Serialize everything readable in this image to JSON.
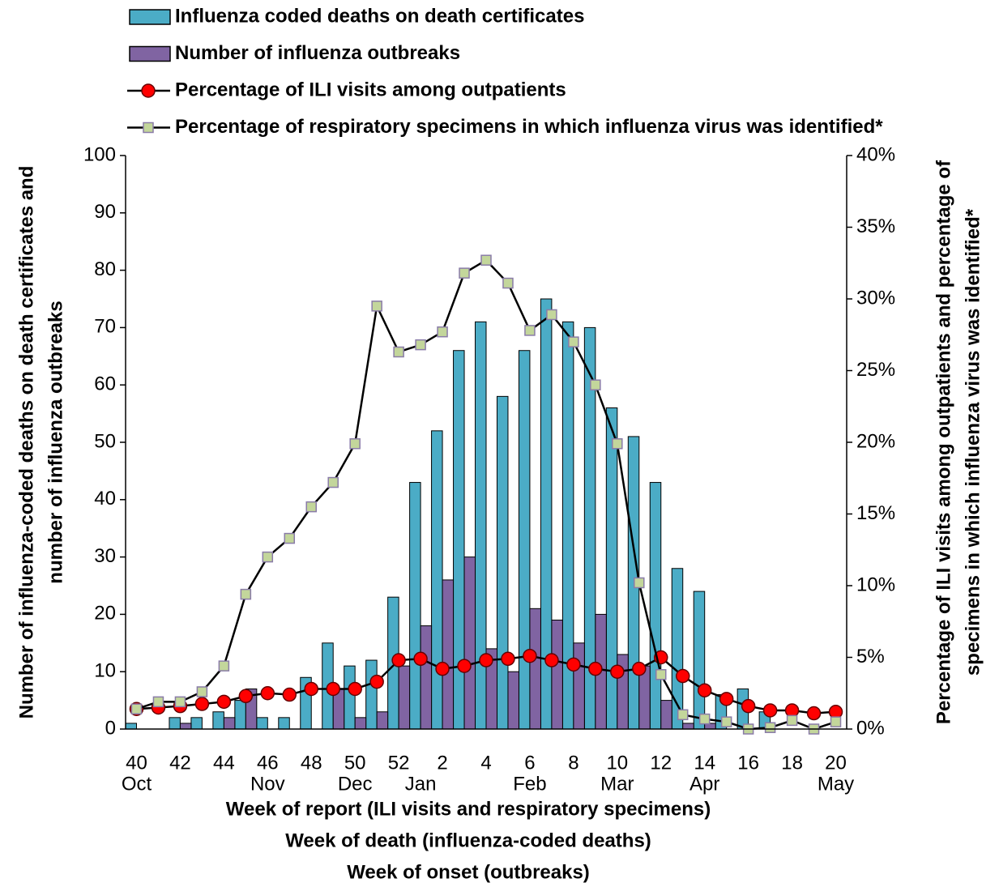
{
  "chart_data": {
    "type": "combo",
    "categories": [
      "40",
      null,
      "42",
      null,
      "44",
      null,
      "46",
      null,
      "48",
      null,
      "50",
      null,
      "52",
      null,
      "2",
      null,
      "4",
      null,
      "6",
      null,
      "8",
      null,
      "10",
      null,
      "12",
      null,
      "14",
      null,
      "16",
      null,
      "18",
      null,
      "20"
    ],
    "month_labels": [
      "Oct",
      null,
      null,
      null,
      null,
      null,
      "Nov",
      null,
      null,
      null,
      "Dec",
      null,
      null,
      "Jan",
      null,
      null,
      null,
      null,
      "Feb",
      null,
      null,
      null,
      "Mar",
      null,
      null,
      null,
      "Apr",
      null,
      null,
      null,
      null,
      null,
      "May"
    ],
    "x_label_lines": [
      "Week of report (ILI visits and respiratory specimens)",
      "Week of death (influenza-coded deaths)",
      "Week of onset (outbreaks)"
    ],
    "y_label_lines": [
      "Number of influenza-coded deaths on death certificates and",
      "number of influenza outbreaks"
    ],
    "y2_label_lines": [
      "Percentage of ILI visits among outpatients and percentage of",
      "specimens in which influenza virus was identified*"
    ],
    "ylim": [
      0,
      100
    ],
    "yticks": [
      0,
      10,
      20,
      30,
      40,
      50,
      60,
      70,
      80,
      90,
      100
    ],
    "y2lim": [
      0,
      40
    ],
    "y2ticks": [
      {
        "value": 0,
        "label": "0%"
      },
      {
        "value": 5,
        "label": "5%"
      },
      {
        "value": 10,
        "label": "10%"
      },
      {
        "value": 15,
        "label": "15%"
      },
      {
        "value": 20,
        "label": "20%"
      },
      {
        "value": 25,
        "label": "25%"
      },
      {
        "value": 30,
        "label": "30%"
      },
      {
        "value": 35,
        "label": "35%"
      },
      {
        "value": 40,
        "label": "40%"
      }
    ],
    "series": [
      {
        "name": "Influenza coded deaths on death certificates",
        "type": "bar",
        "color": "#4bacc6",
        "values": [
          1,
          0,
          2,
          2,
          3,
          5,
          2,
          2,
          9,
          15,
          11,
          12,
          23,
          43,
          52,
          66,
          71,
          58,
          66,
          75,
          71,
          70,
          56,
          51,
          43,
          28,
          24,
          6,
          7,
          3,
          0,
          0,
          0
        ]
      },
      {
        "name": "Number of influenza outbreaks",
        "type": "bar",
        "color": "#8064a2",
        "values": [
          0,
          0,
          1,
          0,
          2,
          7,
          0,
          0,
          0,
          7,
          2,
          3,
          11,
          18,
          26,
          30,
          14,
          10,
          21,
          19,
          15,
          20,
          13,
          11,
          5,
          1,
          1,
          0,
          0,
          0,
          0,
          0,
          0
        ]
      },
      {
        "name": "Percentage of ILI visits among outpatients",
        "type": "line",
        "axis": "y2",
        "marker": "circle",
        "color": "#ff0000",
        "values": [
          1.4,
          1.5,
          1.6,
          1.75,
          1.9,
          2.3,
          2.5,
          2.4,
          2.8,
          2.8,
          2.8,
          3.3,
          4.8,
          4.9,
          4.2,
          4.4,
          4.8,
          4.9,
          5.1,
          4.8,
          4.5,
          4.2,
          4.0,
          4.2,
          5.0,
          3.7,
          2.7,
          2.1,
          1.6,
          1.3,
          1.3,
          1.1,
          1.2
        ]
      },
      {
        "name": "Percentage of respiratory specimens in which influenza virus was identified*",
        "type": "line",
        "axis": "y2",
        "marker": "square",
        "color": "#c3d69b",
        "values": [
          1.4,
          1.9,
          1.9,
          2.6,
          4.4,
          9.4,
          12.0,
          13.3,
          15.5,
          17.2,
          19.9,
          29.5,
          26.3,
          26.8,
          27.7,
          31.8,
          32.7,
          31.1,
          27.8,
          28.9,
          27.0,
          24.0,
          19.9,
          10.2,
          3.8,
          1.0,
          0.7,
          0.5,
          0,
          0.1,
          0.6,
          0,
          0.5
        ]
      }
    ]
  }
}
